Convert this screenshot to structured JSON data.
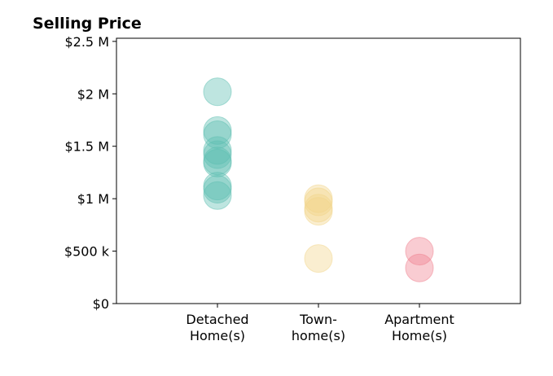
{
  "chart_data": {
    "type": "strip",
    "title": "Selling Price",
    "groups": [
      {
        "label": [
          "Detached",
          "Home(s)"
        ],
        "color": "#5dbfb1",
        "values": [
          2020000,
          1650000,
          1610000,
          1460000,
          1420000,
          1360000,
          1340000,
          1120000,
          1090000,
          1030000
        ]
      },
      {
        "label": [
          "Town-",
          "home(s)"
        ],
        "color": "#f2d58a",
        "values": [
          1000000,
          970000,
          910000,
          880000,
          430000
        ]
      },
      {
        "label": [
          "Apartment",
          "Home(s)"
        ],
        "color": "#f0808e",
        "values": [
          500000,
          340000
        ]
      }
    ],
    "ylim": [
      0,
      2530000
    ],
    "yticks": [
      {
        "value": 0,
        "label": "$0"
      },
      {
        "value": 500000,
        "label": "$500 k"
      },
      {
        "value": 1000000,
        "label": "$1 M"
      },
      {
        "value": 1500000,
        "label": "$1.5 M"
      },
      {
        "value": 2000000,
        "label": "$2 M"
      },
      {
        "value": 2500000,
        "label": "$2.5 M"
      }
    ]
  }
}
